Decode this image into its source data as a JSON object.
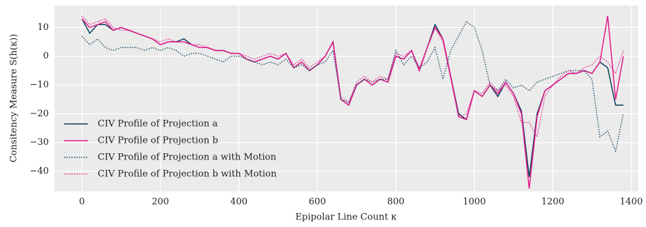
{
  "chart_data": {
    "type": "line",
    "xlabel": "Epipolar Line Count κ",
    "ylabel": "Consitency Measure S(h(κ))",
    "x": [
      0,
      20,
      40,
      60,
      80,
      100,
      120,
      140,
      160,
      180,
      200,
      220,
      240,
      260,
      280,
      300,
      320,
      340,
      360,
      380,
      400,
      420,
      440,
      460,
      480,
      500,
      520,
      540,
      560,
      580,
      600,
      620,
      640,
      660,
      680,
      700,
      720,
      740,
      760,
      780,
      800,
      820,
      840,
      860,
      880,
      900,
      920,
      940,
      960,
      980,
      1000,
      1020,
      1040,
      1060,
      1080,
      1100,
      1120,
      1140,
      1160,
      1180,
      1200,
      1220,
      1240,
      1260,
      1280,
      1300,
      1320,
      1340,
      1360,
      1380
    ],
    "series": [
      {
        "name": "CIV Profile of Projection a",
        "color": "#0b3c5d",
        "dash": "solid",
        "values": [
          13,
          8,
          11,
          11,
          9,
          10,
          9,
          8,
          7,
          6,
          4,
          5,
          5,
          6,
          4,
          3,
          3,
          2,
          2,
          1,
          1,
          -1,
          -2,
          -1,
          0,
          -1,
          1,
          -4,
          -2,
          -5,
          -3,
          0,
          5,
          -15,
          -17,
          -10,
          -8,
          -10,
          -8,
          -9,
          0,
          -1,
          2,
          -5,
          3,
          11,
          6,
          -7,
          -20,
          -22,
          -12,
          -14,
          -10,
          -14,
          -9,
          -13,
          -19,
          -42,
          -20,
          -12,
          -10,
          -8,
          -6,
          -6,
          -5,
          -6,
          -2,
          -4,
          -17,
          -17
        ]
      },
      {
        "name": "CIV Profile of Projection b",
        "color": "#e6198a",
        "dash": "solid",
        "values": [
          13,
          10,
          11,
          12,
          9,
          10,
          9,
          8,
          7,
          6,
          4,
          5,
          5,
          5,
          4,
          3,
          3,
          2,
          2,
          1,
          1,
          -1,
          -2,
          -1,
          0,
          -1,
          1,
          -4,
          -2,
          -5,
          -3,
          0,
          5,
          -15,
          -17,
          -10,
          -8,
          -10,
          -8,
          -9,
          0,
          -1,
          2,
          -5,
          3,
          10,
          6,
          -7,
          -21,
          -22,
          -12,
          -14,
          -10,
          -13,
          -9,
          -13,
          -20,
          -46,
          -21,
          -12,
          -10,
          -8,
          -6,
          -6,
          -5,
          -6,
          -2,
          14,
          -15,
          0
        ]
      },
      {
        "name": "CIV Profile of Projection a with Motion",
        "color": "#0b3c5d",
        "dash": "dotted",
        "values": [
          7,
          4,
          6,
          3,
          2,
          3,
          3,
          3,
          2,
          3,
          2,
          3,
          2,
          0,
          1,
          1,
          0,
          -1,
          -2,
          0,
          0,
          -1,
          -2,
          -3,
          -2,
          -3,
          -1,
          -4,
          -3,
          -5,
          -3,
          -2,
          2,
          -15,
          -16,
          -10,
          -8,
          -9,
          -8,
          -8,
          2,
          -3,
          0,
          -4,
          -2,
          3,
          -8,
          2,
          7,
          12,
          10,
          2,
          -10,
          -12,
          -8,
          -11,
          -10,
          -12,
          -9,
          -8,
          -7,
          -6,
          -5,
          -5,
          -5,
          -8,
          -28,
          -26,
          -33,
          -20
        ]
      },
      {
        "name": "CIV Profile of Projection b with Motion",
        "color": "#e6198a",
        "dash": "dotted",
        "values": [
          14,
          11,
          12,
          13,
          10,
          9,
          9,
          8,
          7,
          6,
          5,
          6,
          5,
          5,
          4,
          4,
          3,
          2,
          2,
          1,
          1,
          0,
          -1,
          0,
          1,
          0,
          1,
          -3,
          -1,
          -4,
          -2,
          0,
          5,
          -14,
          -16,
          -9,
          -7,
          -9,
          -7,
          -8,
          1,
          0,
          2,
          -4,
          3,
          10,
          5,
          -8,
          -21,
          -20,
          -12,
          -13,
          -9,
          -12,
          -10,
          -14,
          -23,
          -23,
          -28,
          -14,
          -10,
          -7,
          -5,
          -6,
          -4,
          -3,
          0,
          -2,
          -6,
          2
        ]
      }
    ],
    "xlim": [
      -70,
      1418
    ],
    "ylim": [
      -47,
      17.6
    ],
    "xticks": [
      0,
      200,
      400,
      600,
      800,
      1000,
      1200,
      1400
    ],
    "yticks": [
      {
        "value": -40,
        "label": "−40"
      },
      {
        "value": -30,
        "label": "−30"
      },
      {
        "value": -20,
        "label": "−20"
      },
      {
        "value": -10,
        "label": "−10"
      },
      0,
      10
    ],
    "grid": true,
    "legend": "lower left"
  }
}
